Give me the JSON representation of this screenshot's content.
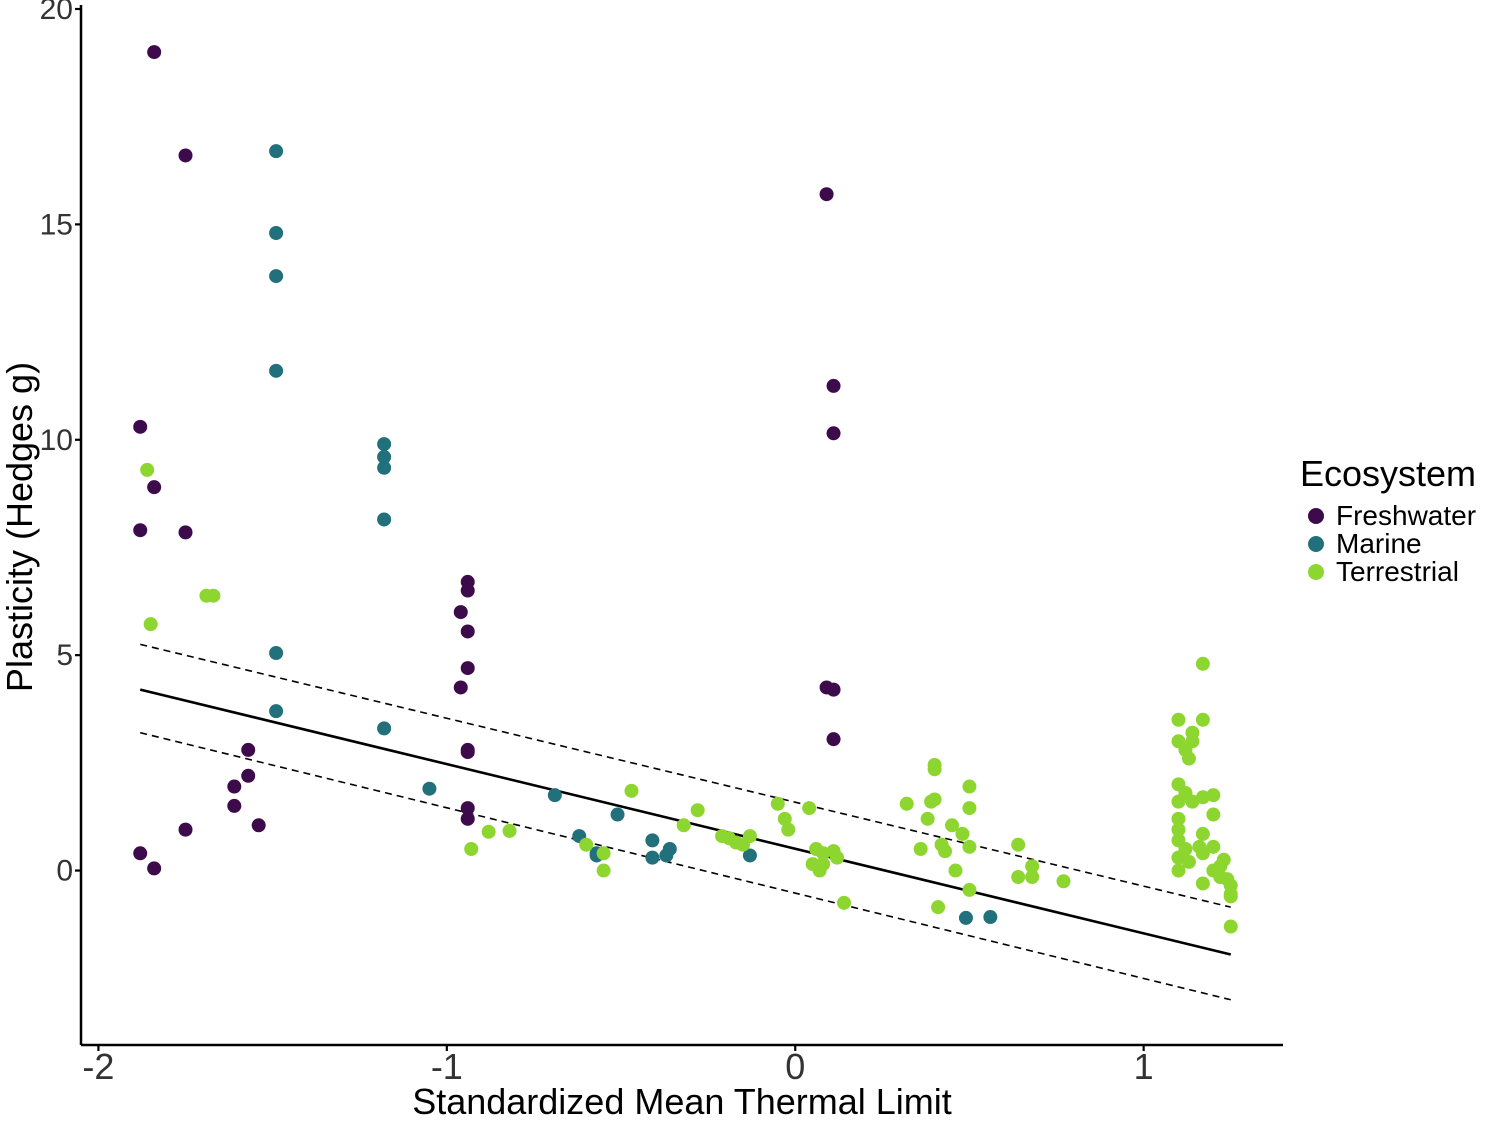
{
  "chart_data": {
    "type": "scatter",
    "xlabel": "Standardized Mean Thermal Limit",
    "ylabel": "Plasticity (Hedges g)",
    "xlim": [
      -2.05,
      1.4
    ],
    "ylim": [
      -4.05,
      20
    ],
    "xticks": [
      -2,
      -1,
      0,
      1
    ],
    "yticks": [
      0,
      5,
      10,
      15,
      20
    ],
    "xtick_labels": [
      "-2",
      "-1",
      "0",
      "1"
    ],
    "ytick_labels": [
      "0",
      "5",
      "10",
      "15",
      "20"
    ],
    "grid": false,
    "legend": {
      "title": "Ecosystem",
      "placement": "right",
      "entries": [
        "Freshwater",
        "Marine",
        "Terrestrial"
      ]
    },
    "fit": {
      "type": "line",
      "x": [
        -1.88,
        1.25
      ],
      "y": [
        4.2,
        -1.95
      ],
      "ci_lower": {
        "x": [
          -1.88,
          1.25
        ],
        "y": [
          3.2,
          -3.0
        ]
      },
      "ci_upper": {
        "x": [
          -1.88,
          1.25
        ],
        "y": [
          5.25,
          -0.85
        ]
      },
      "color": "#000000"
    },
    "series": [
      {
        "name": "Freshwater",
        "color": "#3D0B4B",
        "points": [
          [
            -1.84,
            19.0
          ],
          [
            -1.75,
            16.6
          ],
          [
            -1.88,
            10.3
          ],
          [
            -1.84,
            8.9
          ],
          [
            -1.88,
            7.9
          ],
          [
            -1.75,
            7.85
          ],
          [
            -1.88,
            0.4
          ],
          [
            -1.84,
            0.05
          ],
          [
            -1.75,
            0.95
          ],
          [
            -1.61,
            1.95
          ],
          [
            -1.61,
            1.5
          ],
          [
            -1.57,
            2.2
          ],
          [
            -1.57,
            2.8
          ],
          [
            -1.54,
            1.05
          ],
          [
            -0.96,
            4.25
          ],
          [
            -0.96,
            6.0
          ],
          [
            -0.94,
            6.7
          ],
          [
            -0.94,
            6.5
          ],
          [
            -0.94,
            5.55
          ],
          [
            -0.94,
            4.7
          ],
          [
            -0.94,
            2.8
          ],
          [
            -0.94,
            2.75
          ],
          [
            -0.94,
            1.45
          ],
          [
            -0.94,
            1.2
          ],
          [
            0.09,
            15.7
          ],
          [
            0.11,
            11.25
          ],
          [
            0.11,
            10.15
          ],
          [
            0.09,
            4.25
          ],
          [
            0.11,
            4.2
          ],
          [
            0.11,
            3.05
          ]
        ]
      },
      {
        "name": "Marine",
        "color": "#22707B",
        "points": [
          [
            -1.49,
            16.7
          ],
          [
            -1.49,
            14.8
          ],
          [
            -1.49,
            13.8
          ],
          [
            -1.49,
            11.6
          ],
          [
            -1.49,
            5.05
          ],
          [
            -1.49,
            3.7
          ],
          [
            -1.18,
            9.9
          ],
          [
            -1.18,
            9.6
          ],
          [
            -1.18,
            9.35
          ],
          [
            -1.18,
            8.15
          ],
          [
            -1.18,
            3.3
          ],
          [
            -1.05,
            1.9
          ],
          [
            -0.69,
            1.75
          ],
          [
            -0.62,
            0.8
          ],
          [
            -0.57,
            0.4
          ],
          [
            -0.57,
            0.35
          ],
          [
            -0.51,
            1.3
          ],
          [
            -0.41,
            0.7
          ],
          [
            -0.41,
            0.3
          ],
          [
            -0.37,
            0.35
          ],
          [
            -0.36,
            0.5
          ],
          [
            -0.13,
            0.35
          ],
          [
            0.49,
            -1.1
          ],
          [
            0.56,
            -1.08
          ]
        ]
      },
      {
        "name": "Terrestrial",
        "color": "#8DD630",
        "points": [
          [
            -1.86,
            9.3
          ],
          [
            -1.85,
            5.72
          ],
          [
            -1.69,
            6.38
          ],
          [
            -1.67,
            6.38
          ],
          [
            -0.93,
            0.5
          ],
          [
            -0.88,
            0.9
          ],
          [
            -0.82,
            0.92
          ],
          [
            -0.6,
            0.6
          ],
          [
            -0.55,
            0.4
          ],
          [
            -0.55,
            0.0
          ],
          [
            -0.47,
            1.85
          ],
          [
            -0.32,
            1.05
          ],
          [
            -0.28,
            1.4
          ],
          [
            -0.21,
            0.8
          ],
          [
            -0.19,
            0.75
          ],
          [
            -0.17,
            0.65
          ],
          [
            -0.15,
            0.6
          ],
          [
            -0.13,
            0.8
          ],
          [
            -0.05,
            1.55
          ],
          [
            -0.03,
            1.2
          ],
          [
            -0.02,
            0.95
          ],
          [
            0.04,
            1.45
          ],
          [
            0.05,
            0.15
          ],
          [
            0.06,
            0.5
          ],
          [
            0.07,
            0.0
          ],
          [
            0.08,
            0.15
          ],
          [
            0.08,
            0.4
          ],
          [
            0.11,
            0.45
          ],
          [
            0.12,
            0.3
          ],
          [
            0.14,
            -0.75
          ],
          [
            0.32,
            1.55
          ],
          [
            0.36,
            0.5
          ],
          [
            0.38,
            1.2
          ],
          [
            0.39,
            1.6
          ],
          [
            0.4,
            1.65
          ],
          [
            0.4,
            2.35
          ],
          [
            0.4,
            2.45
          ],
          [
            0.41,
            -0.85
          ],
          [
            0.42,
            0.6
          ],
          [
            0.43,
            0.45
          ],
          [
            0.45,
            1.05
          ],
          [
            0.46,
            0.0
          ],
          [
            0.48,
            0.85
          ],
          [
            0.5,
            1.45
          ],
          [
            0.5,
            0.55
          ],
          [
            0.5,
            1.95
          ],
          [
            0.5,
            -0.45
          ],
          [
            0.64,
            0.6
          ],
          [
            0.64,
            -0.15
          ],
          [
            0.68,
            0.1
          ],
          [
            0.68,
            -0.15
          ],
          [
            0.77,
            -0.25
          ],
          [
            1.1,
            3.5
          ],
          [
            1.1,
            3.0
          ],
          [
            1.1,
            2.0
          ],
          [
            1.1,
            1.6
          ],
          [
            1.1,
            1.2
          ],
          [
            1.1,
            0.95
          ],
          [
            1.1,
            0.7
          ],
          [
            1.1,
            0.3
          ],
          [
            1.1,
            0.0
          ],
          [
            1.12,
            2.8
          ],
          [
            1.12,
            1.8
          ],
          [
            1.12,
            0.5
          ],
          [
            1.13,
            2.6
          ],
          [
            1.13,
            0.2
          ],
          [
            1.14,
            3.2
          ],
          [
            1.14,
            3.0
          ],
          [
            1.14,
            1.6
          ],
          [
            1.16,
            0.55
          ],
          [
            1.17,
            4.8
          ],
          [
            1.17,
            3.5
          ],
          [
            1.17,
            1.7
          ],
          [
            1.17,
            0.85
          ],
          [
            1.17,
            0.4
          ],
          [
            1.17,
            -0.3
          ],
          [
            1.2,
            1.75
          ],
          [
            1.2,
            1.3
          ],
          [
            1.2,
            0.55
          ],
          [
            1.2,
            0.0
          ],
          [
            1.22,
            0.1
          ],
          [
            1.22,
            -0.15
          ],
          [
            1.23,
            0.25
          ],
          [
            1.24,
            -0.2
          ],
          [
            1.25,
            -0.35
          ],
          [
            1.25,
            -0.55
          ],
          [
            1.25,
            -0.6
          ],
          [
            1.25,
            -1.3
          ]
        ]
      }
    ]
  }
}
